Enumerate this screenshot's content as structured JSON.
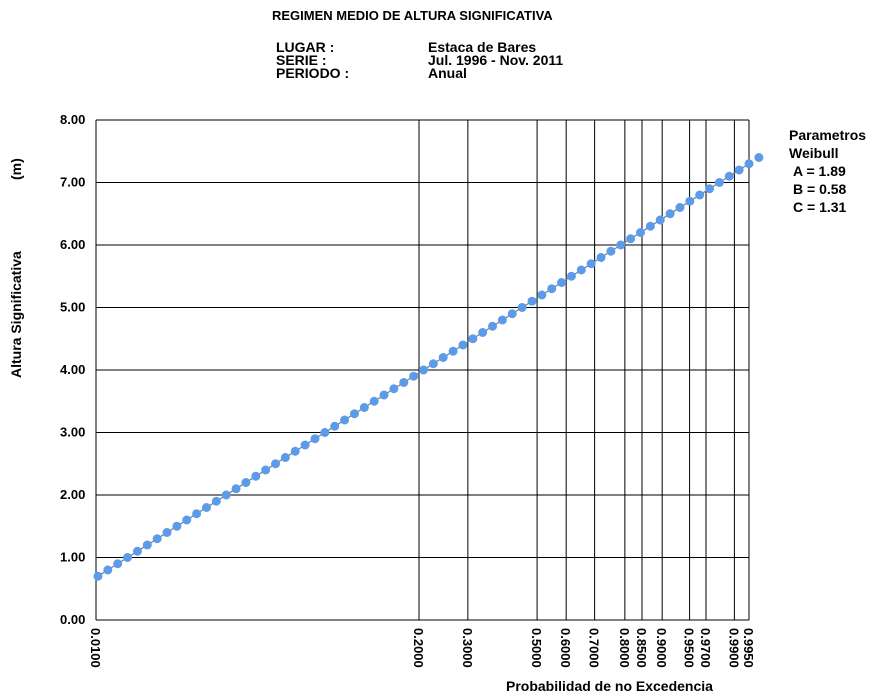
{
  "header": {
    "title": "REGIMEN MEDIO DE ALTURA SIGNIFICATIVA",
    "lugar_label": "LUGAR :",
    "lugar_value": "Estaca de Bares",
    "serie_label": "SERIE :",
    "serie_value": "Jul. 1996 - Nov. 2011",
    "periodo_label": "PERIODO :",
    "periodo_value": "Anual"
  },
  "params": {
    "title1": "Parametros",
    "title2": "Weibull",
    "a": "A =  1.89",
    "b": "B =  0.58",
    "c": "C =  1.31"
  },
  "colors": {
    "points": "#5b9bea",
    "fit": "#7a7a7a",
    "grid": "#000000"
  },
  "chart_data": {
    "type": "scatter",
    "title": "REGIMEN MEDIO DE ALTURA SIGNIFICATIVA",
    "xlabel": "Probabilidad de no Excedencia",
    "ylabel": "Altura Significativa",
    "ylabel_unit": "(m)",
    "ylim": [
      0,
      8
    ],
    "y_ticks": [
      "0.00",
      "1.00",
      "2.00",
      "3.00",
      "4.00",
      "5.00",
      "6.00",
      "7.00",
      "8.00"
    ],
    "x_ticks": [
      "0.0100",
      "0.2000",
      "0.3000",
      "0.5000",
      "0.6000",
      "0.7000",
      "0.8000",
      "0.8500",
      "0.9000",
      "0.9500",
      "0.9700",
      "0.9900",
      "0.9950"
    ],
    "grid": true,
    "legend": "none",
    "x_scale": "weibull probability (non-linear)",
    "fit_line": {
      "x_start": "0.0100",
      "y_start": 0.68,
      "x_end": "0.9950",
      "y_end": 7.3
    },
    "series": [
      {
        "label": "observed points",
        "y": [
          0.7,
          0.8,
          0.9,
          1.0,
          1.1,
          1.2,
          1.3,
          1.4,
          1.5,
          1.6,
          1.7,
          1.8,
          1.9,
          2.0,
          2.1,
          2.2,
          2.3,
          2.4,
          2.5,
          2.6,
          2.7,
          2.8,
          2.9,
          3.0,
          3.1,
          3.2,
          3.3,
          3.4,
          3.5,
          3.6,
          3.7,
          3.8,
          3.9,
          4.0,
          4.1,
          4.2,
          4.3,
          4.4,
          4.5,
          4.6,
          4.7,
          4.8,
          4.9,
          5.0,
          5.1,
          5.2,
          5.3,
          5.4,
          5.5,
          5.6,
          5.7,
          5.8,
          5.9,
          6.0,
          6.1,
          6.2,
          6.3,
          6.4,
          6.5,
          6.6,
          6.7,
          6.8,
          6.9,
          7.0,
          7.1,
          7.2,
          7.3,
          7.4
        ]
      }
    ]
  }
}
